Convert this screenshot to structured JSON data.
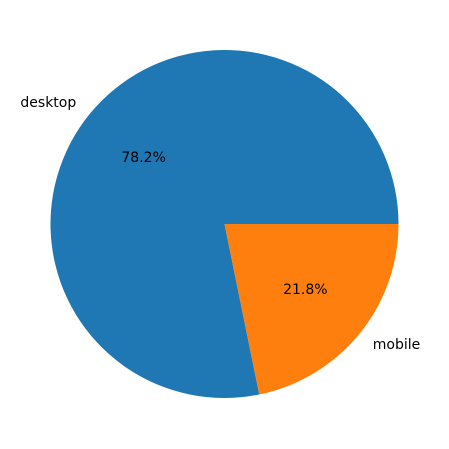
{
  "chart_data": {
    "type": "pie",
    "title": "",
    "categories": [
      "desktop",
      "mobile"
    ],
    "values": [
      78.2,
      21.8
    ],
    "percent_labels": [
      "78.2%",
      "21.8%"
    ],
    "colors": [
      "#1f77b4",
      "#ff7f0e"
    ],
    "start_angle_deg": 0,
    "direction": "counterclockwise",
    "legend": "none"
  }
}
